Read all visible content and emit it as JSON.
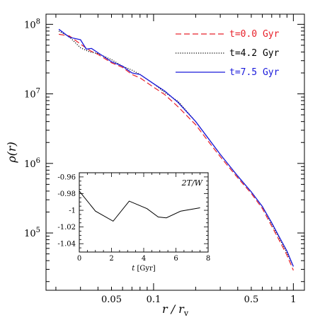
{
  "chart_data": [
    {
      "type": "line",
      "xlabel": "r / r_v",
      "ylabel": "ρ(r)",
      "xscale": "log",
      "yscale": "log",
      "xlim": [
        0.017,
        1.2
      ],
      "ylim": [
        15000,
        140000000
      ],
      "x_tick_labels": [
        "0.05",
        "0.1",
        "0.5",
        "1"
      ],
      "y_tick_labels": [
        "10^8",
        "10^7",
        "10^6",
        "10^5"
      ],
      "legend_placement": "top-right",
      "series": [
        {
          "name": "t=0.0 Gyr",
          "color": "#e8202a",
          "style": "dashed",
          "x": [
            0.021,
            0.025,
            0.03,
            0.035,
            0.04,
            0.05,
            0.06,
            0.07,
            0.08,
            0.1,
            0.12,
            0.15,
            0.2,
            0.25,
            0.3,
            0.4,
            0.5,
            0.6,
            0.7,
            0.8,
            0.9,
            1.0
          ],
          "y": [
            72000000,
            68000000,
            52000000,
            42000000,
            37000000,
            28000000,
            24000000,
            19000000,
            17000000,
            12500000,
            9800000,
            6500000,
            3600000,
            2000000,
            1250000,
            620000,
            370000,
            225000,
            125000,
            76000,
            48000,
            29000
          ]
        },
        {
          "name": "t=4.2 Gyr",
          "color": "#000000",
          "style": "dotted",
          "x": [
            0.021,
            0.025,
            0.03,
            0.035,
            0.04,
            0.05,
            0.06,
            0.07,
            0.08,
            0.1,
            0.12,
            0.15,
            0.2,
            0.25,
            0.3,
            0.4,
            0.5,
            0.6,
            0.7,
            0.8,
            0.9,
            1.0
          ],
          "y": [
            80000000,
            66000000,
            46000000,
            40000000,
            38000000,
            31000000,
            25000000,
            22000000,
            19000000,
            14000000,
            10500000,
            7800000,
            4000000,
            2200000,
            1350000,
            650000,
            390000,
            240000,
            135000,
            82000,
            52000,
            33000
          ]
        },
        {
          "name": "t=7.5 Gyr",
          "color": "#1a1adb",
          "style": "solid",
          "x": [
            0.021,
            0.025,
            0.03,
            0.033,
            0.036,
            0.04,
            0.05,
            0.06,
            0.07,
            0.08,
            0.1,
            0.12,
            0.15,
            0.2,
            0.25,
            0.3,
            0.4,
            0.5,
            0.6,
            0.7,
            0.8,
            0.9,
            1.0
          ],
          "y": [
            85000000,
            65000000,
            60000000,
            44000000,
            45000000,
            39000000,
            29000000,
            25000000,
            20000000,
            19000000,
            14000000,
            11000000,
            7500000,
            4000000,
            2200000,
            1350000,
            660000,
            390000,
            240000,
            140000,
            85000,
            55000,
            33000
          ]
        }
      ]
    },
    {
      "type": "line",
      "xlabel": "t [Gyr]",
      "ylabel": "",
      "annotation": "2T/W",
      "xlim": [
        0,
        8
      ],
      "ylim": [
        -1.05,
        -0.955
      ],
      "x_tick_labels": [
        "0",
        "2",
        "4",
        "6",
        "8"
      ],
      "y_tick_labels": [
        "-0.96",
        "-0.98",
        "-1",
        "-1.02",
        "-1.04"
      ],
      "series": [
        {
          "x": [
            0,
            1,
            2.1,
            3.1,
            4.2,
            4.9,
            5.4,
            6.3,
            7.5
          ],
          "y": [
            -0.977,
            -1.001,
            -1.013,
            -0.989,
            -0.998,
            -1.008,
            -1.009,
            -1.001,
            -0.997
          ]
        }
      ]
    }
  ]
}
